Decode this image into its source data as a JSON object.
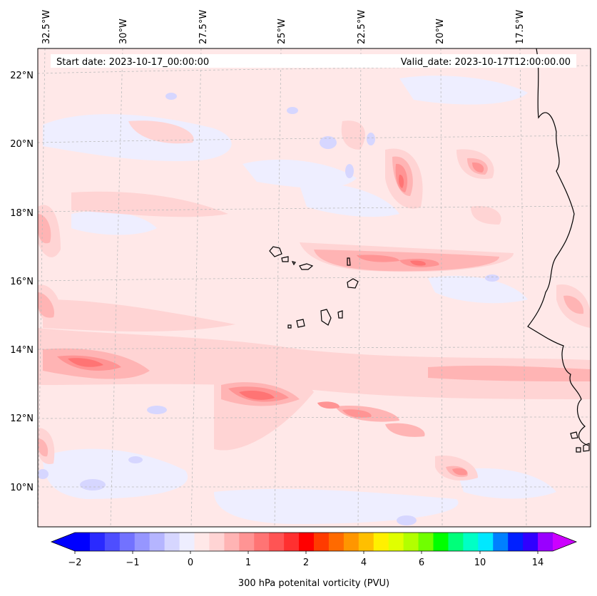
{
  "header": {
    "start_date": "Start date: 2023-10-17_00:00:00",
    "valid_date": "Valid_date: 2023-10-17T12:00:00.00"
  },
  "map": {
    "projection": "conic",
    "lon_labels": [
      "32.5°W",
      "30°W",
      "27.5°W",
      "25°W",
      "22.5°W",
      "20°W",
      "17.5°W"
    ],
    "lat_labels": [
      "22°N",
      "20°N",
      "18°N",
      "16°N",
      "14°N",
      "12°N",
      "10°N"
    ],
    "gridlines": "dashed light gray",
    "land_outline": "Cape Verde islands and West African coastline in black"
  },
  "colorbar": {
    "label": "300 hPa potenital vorticity (PVU)",
    "tick_labels": [
      "−2",
      "−1",
      "0",
      "1",
      "2",
      "4",
      "6",
      "10",
      "14"
    ],
    "colors": [
      "#0000ff",
      "#2a2aff",
      "#4e4eff",
      "#7272ff",
      "#9696ff",
      "#b5b5ff",
      "#d6d6ff",
      "#eeeeff",
      "#ffe8e8",
      "#ffd4d4",
      "#ffb4b4",
      "#ff9494",
      "#ff7474",
      "#ff5454",
      "#ff3030",
      "#ff0000",
      "#ff3b00",
      "#ff6a00",
      "#ff9600",
      "#ffbf00",
      "#fff000",
      "#e0ff00",
      "#b2ff00",
      "#70ff00",
      "#00ff00",
      "#00ff7a",
      "#00ffc5",
      "#00e8ff",
      "#0080ff",
      "#0020ff",
      "#3000ff",
      "#9900ff"
    ],
    "extend_low_color": "#0000ff",
    "extend_high_color": "#cc00ff"
  }
}
